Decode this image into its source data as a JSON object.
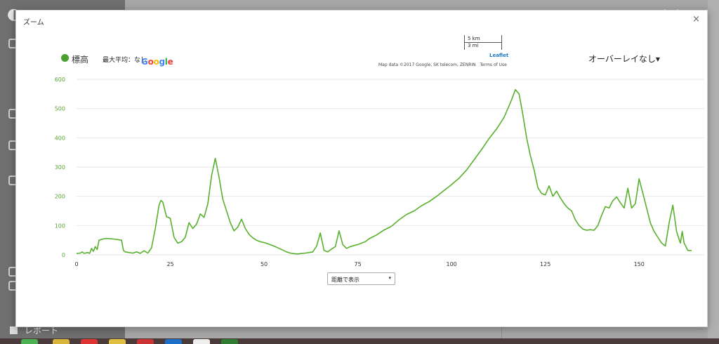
{
  "background": {
    "report_label": "レポート"
  },
  "modal": {
    "title": "ズーム",
    "close_glyph": "×"
  },
  "map": {
    "scale_km": "5 km",
    "scale_mi": "3 mi",
    "leaflet_label": "Leaflet",
    "attribution": "Map data ©2017 Google, SK telecom, ZENRIN",
    "terms": "Terms of Use",
    "google_logo": "Google"
  },
  "legend": {
    "series_label": "標高",
    "max_avg": "最大平均：なし"
  },
  "overlay_select": {
    "value": "オーバーレイなし▾"
  },
  "distance_select": {
    "value": "距離で表示",
    "arrow": "▾"
  },
  "colors": {
    "line": "#58b02c",
    "grid": "#e6e6e6",
    "tick_y": "#58a52e"
  },
  "chart_data": {
    "type": "line",
    "title": "",
    "xlabel": "",
    "ylabel": "",
    "xlim": [
      0,
      164
    ],
    "ylim": [
      0,
      600
    ],
    "x_ticks": [
      0,
      25,
      50,
      75,
      100,
      125,
      150
    ],
    "y_ticks": [
      0,
      100,
      200,
      300,
      400,
      500,
      600
    ],
    "grid": true,
    "series": [
      {
        "name": "標高",
        "color": "#58b02c",
        "points": [
          [
            0,
            5
          ],
          [
            1,
            6
          ],
          [
            1.5,
            10
          ],
          [
            2,
            5
          ],
          [
            3,
            8
          ],
          [
            3.5,
            5
          ],
          [
            4,
            22
          ],
          [
            4.5,
            12
          ],
          [
            5,
            28
          ],
          [
            5.5,
            18
          ],
          [
            6,
            50
          ],
          [
            7,
            54
          ],
          [
            8,
            56
          ],
          [
            9,
            55
          ],
          [
            10,
            54
          ],
          [
            11,
            52
          ],
          [
            12,
            50
          ],
          [
            12.5,
            15
          ],
          [
            13,
            10
          ],
          [
            14,
            8
          ],
          [
            15,
            6
          ],
          [
            16,
            10
          ],
          [
            17,
            5
          ],
          [
            18,
            14
          ],
          [
            19,
            6
          ],
          [
            20,
            24
          ],
          [
            21,
            90
          ],
          [
            22,
            170
          ],
          [
            22.5,
            186
          ],
          [
            23,
            180
          ],
          [
            24,
            130
          ],
          [
            25,
            125
          ],
          [
            26,
            60
          ],
          [
            27,
            40
          ],
          [
            28,
            45
          ],
          [
            29,
            60
          ],
          [
            30,
            110
          ],
          [
            31,
            90
          ],
          [
            32,
            105
          ],
          [
            33,
            140
          ],
          [
            34,
            128
          ],
          [
            35,
            175
          ],
          [
            36,
            270
          ],
          [
            37,
            330
          ],
          [
            38,
            265
          ],
          [
            39,
            190
          ],
          [
            40,
            150
          ],
          [
            41,
            110
          ],
          [
            42,
            82
          ],
          [
            43,
            95
          ],
          [
            44,
            122
          ],
          [
            45,
            90
          ],
          [
            46,
            70
          ],
          [
            47,
            58
          ],
          [
            48,
            50
          ],
          [
            49,
            45
          ],
          [
            50,
            42
          ],
          [
            51,
            38
          ],
          [
            52,
            33
          ],
          [
            53,
            28
          ],
          [
            54,
            22
          ],
          [
            55,
            16
          ],
          [
            56,
            10
          ],
          [
            57,
            6
          ],
          [
            58,
            4
          ],
          [
            59,
            3
          ],
          [
            60,
            5
          ],
          [
            61,
            6
          ],
          [
            62,
            8
          ],
          [
            63,
            10
          ],
          [
            64,
            30
          ],
          [
            65,
            75
          ],
          [
            66,
            15
          ],
          [
            67,
            10
          ],
          [
            68,
            20
          ],
          [
            69,
            28
          ],
          [
            70,
            82
          ],
          [
            71,
            35
          ],
          [
            72,
            22
          ],
          [
            73,
            28
          ],
          [
            74,
            32
          ],
          [
            75,
            35
          ],
          [
            76,
            40
          ],
          [
            77,
            45
          ],
          [
            78,
            55
          ],
          [
            80,
            68
          ],
          [
            82,
            85
          ],
          [
            84,
            98
          ],
          [
            86,
            120
          ],
          [
            88,
            138
          ],
          [
            90,
            150
          ],
          [
            92,
            168
          ],
          [
            94,
            182
          ],
          [
            96,
            200
          ],
          [
            98,
            220
          ],
          [
            100,
            240
          ],
          [
            102,
            262
          ],
          [
            104,
            290
          ],
          [
            106,
            325
          ],
          [
            108,
            360
          ],
          [
            110,
            398
          ],
          [
            112,
            430
          ],
          [
            114,
            470
          ],
          [
            115,
            500
          ],
          [
            116,
            530
          ],
          [
            117,
            565
          ],
          [
            118,
            550
          ],
          [
            119,
            480
          ],
          [
            120,
            400
          ],
          [
            121,
            340
          ],
          [
            122,
            290
          ],
          [
            123,
            230
          ],
          [
            124,
            210
          ],
          [
            125,
            205
          ],
          [
            126,
            236
          ],
          [
            127,
            200
          ],
          [
            128,
            218
          ],
          [
            129,
            195
          ],
          [
            130,
            175
          ],
          [
            131,
            160
          ],
          [
            132,
            150
          ],
          [
            133,
            120
          ],
          [
            134,
            100
          ],
          [
            135,
            88
          ],
          [
            136,
            84
          ],
          [
            137,
            86
          ],
          [
            138,
            84
          ],
          [
            139,
            100
          ],
          [
            140,
            135
          ],
          [
            141,
            165
          ],
          [
            142,
            160
          ],
          [
            143,
            185
          ],
          [
            144,
            198
          ],
          [
            145,
            178
          ],
          [
            146,
            160
          ],
          [
            147,
            228
          ],
          [
            148,
            160
          ],
          [
            149,
            175
          ],
          [
            150,
            260
          ],
          [
            151,
            210
          ],
          [
            152,
            160
          ],
          [
            153,
            110
          ],
          [
            154,
            80
          ],
          [
            155,
            60
          ],
          [
            156,
            40
          ],
          [
            157,
            30
          ],
          [
            158,
            110
          ],
          [
            159,
            170
          ],
          [
            160,
            80
          ],
          [
            161,
            40
          ],
          [
            161.5,
            80
          ],
          [
            162,
            40
          ],
          [
            163,
            15
          ],
          [
            164,
            15
          ]
        ]
      }
    ]
  }
}
